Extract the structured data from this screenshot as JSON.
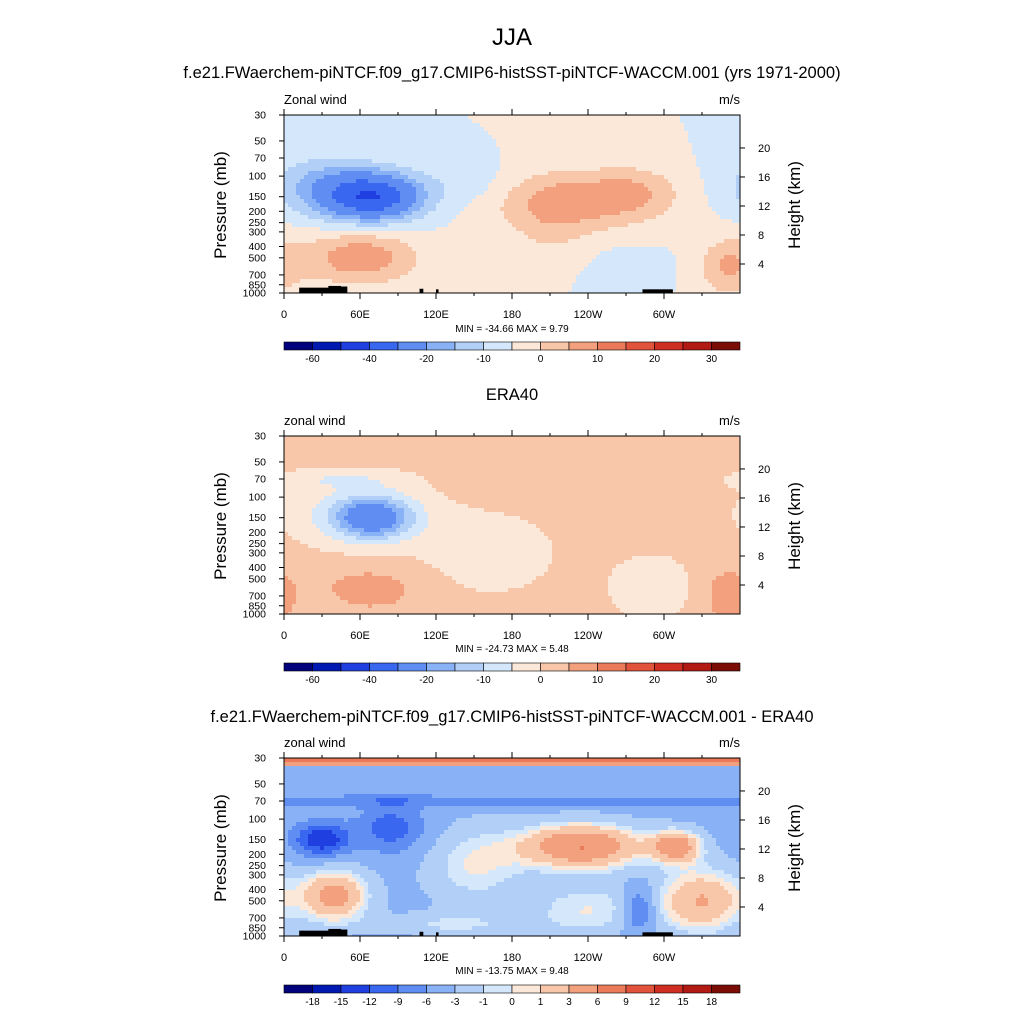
{
  "figure": {
    "title": "JJA"
  },
  "colors": {
    "shading": [
      "#00007c",
      "#0019b1",
      "#1f3fe0",
      "#3a67ef",
      "#5f8df2",
      "#89b1f6",
      "#b2cff8",
      "#d5e7fb",
      "#fce8d8",
      "#f8c6a8",
      "#f2a07d",
      "#eb7a5a",
      "#e1533b",
      "#cf2e22",
      "#b21a14",
      "#7a0d06"
    ],
    "land": "#000000"
  },
  "panels": [
    {
      "id": "model",
      "header": "f.e21.FWaerchem-piNTCF.f09_g17.CMIP6-histSST-piNTCF-WACCM.001 (yrs 1971-2000)",
      "left_label": "Zonal wind",
      "right_label": "m/s",
      "stats": "MIN = -34.66  MAX =   9.79",
      "colorbar_labels": [
        "-60",
        "-40",
        "-20",
        "-10",
        "0",
        "10",
        "20",
        "30"
      ],
      "colorbar_label_slots": [
        1,
        3,
        5,
        7,
        9,
        11,
        13,
        15
      ]
    },
    {
      "id": "obs",
      "header": "ERA40",
      "left_label": "zonal wind",
      "right_label": "m/s",
      "stats": "MIN = -24.73  MAX =   5.48",
      "colorbar_labels": [
        "-60",
        "-40",
        "-20",
        "-10",
        "0",
        "10",
        "20",
        "30"
      ],
      "colorbar_label_slots": [
        1,
        3,
        5,
        7,
        9,
        11,
        13,
        15
      ]
    },
    {
      "id": "diff",
      "header": "f.e21.FWaerchem-piNTCF.f09_g17.CMIP6-histSST-piNTCF-WACCM.001 - ERA40",
      "left_label": "zonal wind",
      "right_label": "m/s",
      "stats": "MIN = -13.75  MAX =   9.48",
      "colorbar_labels": [
        "-18",
        "-15",
        "-12",
        "-9",
        "-6",
        "-3",
        "-1",
        "0",
        "1",
        "3",
        "6",
        "9",
        "12",
        "15",
        "18"
      ],
      "colorbar_label_slots": [
        1,
        2,
        3,
        4,
        5,
        6,
        7,
        8,
        9,
        10,
        11,
        12,
        13,
        14,
        15
      ]
    }
  ],
  "chart_data": [
    {
      "type": "heatmap",
      "title": "f.e21.FWaerchem-piNTCF.f09_g17.CMIP6-histSST-piNTCF-WACCM.001 (yrs 1971-2000)",
      "variable": "Zonal wind",
      "units": "m/s",
      "xlabel": "",
      "ylabel": "Pressure (mb)",
      "y2label": "Height (km)",
      "xticks": [
        "0",
        "60E",
        "120E",
        "180",
        "120W",
        "60W"
      ],
      "yticks": [
        "30",
        "50",
        "70",
        "100",
        "150",
        "200",
        "250",
        "300",
        "400",
        "500",
        "700",
        "850",
        "1000"
      ],
      "y2ticks": [
        "20",
        "16",
        "12",
        "8",
        "4"
      ],
      "xlim": [
        0,
        360
      ],
      "ylim": [
        1000,
        30
      ],
      "y_scale": "log",
      "contour_levels": [
        -70,
        -60,
        -50,
        -40,
        -30,
        -20,
        -15,
        -10,
        -5,
        0,
        5,
        10,
        15,
        20,
        25,
        30
      ],
      "min": -34.66,
      "max": 9.79,
      "base_level": -5,
      "features": [
        {
          "lon": 70,
          "p": 150,
          "value": -33,
          "wlon": 38,
          "wlogp": 0.2
        },
        {
          "lon": 30,
          "p": 120,
          "value": -10,
          "wlon": 40,
          "wlogp": 0.25
        },
        {
          "lon": 150,
          "p": 120,
          "value": -4,
          "wlon": 40,
          "wlogp": 0.2
        },
        {
          "lon": 230,
          "p": 160,
          "value": 14,
          "wlon": 65,
          "wlogp": 0.25
        },
        {
          "lon": 280,
          "p": 130,
          "value": 5,
          "wlon": 30,
          "wlogp": 0.2
        },
        {
          "lon": 60,
          "p": 500,
          "value": 14,
          "wlon": 45,
          "wlogp": 0.22
        },
        {
          "lon": 210,
          "p": 320,
          "value": 4,
          "wlon": 30,
          "wlogp": 0.25
        },
        {
          "lon": 350,
          "p": 600,
          "value": 10,
          "wlon": 22,
          "wlogp": 0.25
        },
        {
          "lon": 270,
          "p": 600,
          "value": -2,
          "wlon": 30,
          "wlogp": 0.2
        }
      ],
      "grid": false,
      "legend": "bottom"
    },
    {
      "type": "heatmap",
      "title": "ERA40",
      "variable": "zonal wind",
      "units": "m/s",
      "xlabel": "",
      "ylabel": "Pressure (mb)",
      "y2label": "Height (km)",
      "xticks": [
        "0",
        "60E",
        "120E",
        "180",
        "120W",
        "60W"
      ],
      "yticks": [
        "30",
        "50",
        "70",
        "100",
        "150",
        "200",
        "250",
        "300",
        "400",
        "500",
        "700",
        "850",
        "1000"
      ],
      "y2ticks": [
        "20",
        "16",
        "12",
        "8",
        "4"
      ],
      "xlim": [
        0,
        360
      ],
      "ylim": [
        1000,
        30
      ],
      "y_scale": "log",
      "contour_levels": [
        -70,
        -60,
        -50,
        -40,
        -30,
        -20,
        -15,
        -10,
        -5,
        0,
        5,
        10,
        15,
        20,
        25,
        30
      ],
      "min": -24.73,
      "max": 5.48,
      "base_level": 2,
      "features": [
        {
          "lon": 70,
          "p": 150,
          "value": -24,
          "wlon": 30,
          "wlogp": 0.17
        },
        {
          "lon": 60,
          "p": 140,
          "value": -8,
          "wlon": 55,
          "wlogp": 0.3
        },
        {
          "lon": 160,
          "p": 300,
          "value": -5,
          "wlon": 55,
          "wlogp": 0.35
        },
        {
          "lon": 40,
          "p": 70,
          "value": -5,
          "wlon": 50,
          "wlogp": 0.08
        },
        {
          "lon": 290,
          "p": 600,
          "value": -5,
          "wlon": 35,
          "wlogp": 0.3
        },
        {
          "lon": 350,
          "p": 700,
          "value": 6,
          "wlon": 20,
          "wlogp": 0.25
        },
        {
          "lon": 70,
          "p": 600,
          "value": 5,
          "wlon": 45,
          "wlogp": 0.22
        }
      ],
      "grid": false,
      "legend": "bottom"
    },
    {
      "type": "heatmap",
      "title": "f.e21.FWaerchem-piNTCF.f09_g17.CMIP6-histSST-piNTCF-WACCM.001 - ERA40",
      "variable": "zonal wind",
      "units": "m/s",
      "xlabel": "",
      "ylabel": "Pressure (mb)",
      "y2label": "Height (km)",
      "xticks": [
        "0",
        "60E",
        "120E",
        "180",
        "120W",
        "60W"
      ],
      "yticks": [
        "30",
        "50",
        "70",
        "100",
        "150",
        "200",
        "250",
        "300",
        "400",
        "500",
        "700",
        "850",
        "1000"
      ],
      "y2ticks": [
        "20",
        "16",
        "12",
        "8",
        "4"
      ],
      "xlim": [
        0,
        360
      ],
      "ylim": [
        1000,
        30
      ],
      "y_scale": "log",
      "contour_levels": [
        -20,
        -18,
        -15,
        -12,
        -9,
        -6,
        -3,
        -1,
        0,
        1,
        3,
        6,
        9,
        12,
        15,
        18
      ],
      "min": -13.75,
      "max": 9.48,
      "base_level": -4,
      "features": [
        {
          "lon": 0,
          "p": 32,
          "value": 13,
          "wlon": 900,
          "wlogp": 0.035
        },
        {
          "lon": 180,
          "p": 70,
          "value": -4,
          "wlon": 900,
          "wlogp": 0.05
        },
        {
          "lon": 30,
          "p": 150,
          "value": -11,
          "wlon": 22,
          "wlogp": 0.14
        },
        {
          "lon": 85,
          "p": 120,
          "value": -7,
          "wlon": 25,
          "wlogp": 0.2
        },
        {
          "lon": 150,
          "p": 250,
          "value": 4,
          "wlon": 40,
          "wlogp": 0.35
        },
        {
          "lon": 235,
          "p": 170,
          "value": 10,
          "wlon": 50,
          "wlogp": 0.2
        },
        {
          "lon": 310,
          "p": 170,
          "value": 8,
          "wlon": 20,
          "wlogp": 0.14
        },
        {
          "lon": 40,
          "p": 450,
          "value": 8,
          "wlon": 28,
          "wlogp": 0.24
        },
        {
          "lon": 330,
          "p": 500,
          "value": 7,
          "wlon": 35,
          "wlogp": 0.3
        },
        {
          "lon": 240,
          "p": 600,
          "value": 4,
          "wlon": 50,
          "wlogp": 0.25
        },
        {
          "lon": 130,
          "p": 800,
          "value": 3,
          "wlon": 60,
          "wlogp": 0.1
        },
        {
          "lon": 280,
          "p": 600,
          "value": -7,
          "wlon": 12,
          "wlogp": 0.2
        }
      ],
      "grid": false,
      "legend": "bottom"
    }
  ]
}
